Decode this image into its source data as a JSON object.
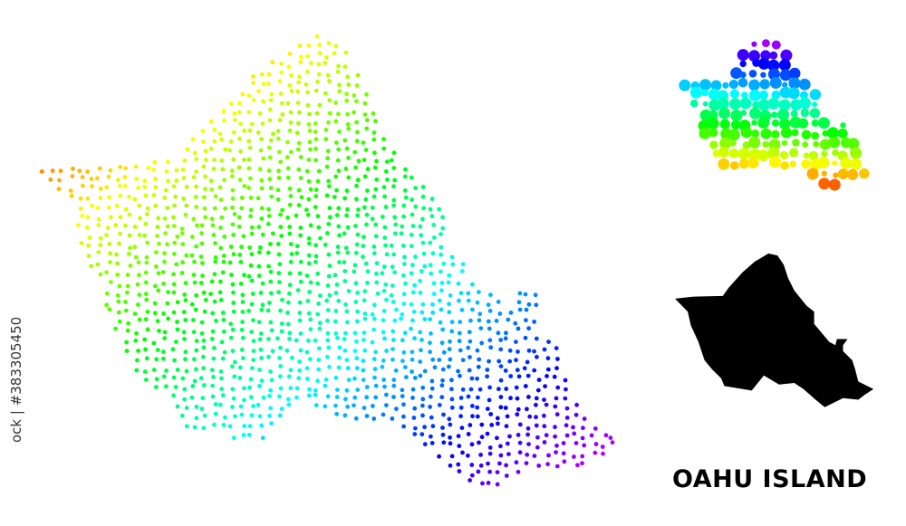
{
  "image": {
    "title": "OAHU ISLAND",
    "credit": "ock | #383305450",
    "maps": [
      {
        "kind": "dotted-gradient-map",
        "palette": "spectrum orange-yellow-green-cyan-blue-violet (west to east)"
      },
      {
        "kind": "bubble-gradient-map",
        "palette": "spectrum violet-blue-cyan-green-yellow-orange-red (north to south)"
      },
      {
        "kind": "solid-silhouette-map",
        "color": "#000000"
      }
    ]
  }
}
